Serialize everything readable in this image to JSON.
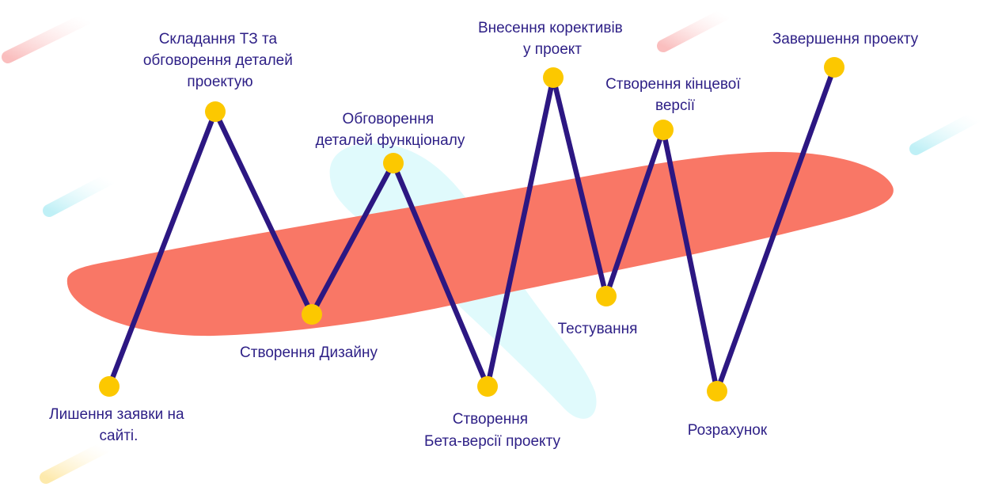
{
  "colors": {
    "path": "#2c1782",
    "node": "#fcc800",
    "blob": "#f97766",
    "blob_light": "#e0fafc",
    "text": "#2d1f86",
    "streak_pink": "#fbd3d3",
    "streak_cyan": "#d6f6fa",
    "streak_yellow": "#fdf0c4"
  },
  "steps": [
    {
      "id": "request",
      "lines": [
        "Лишення заявки на",
        "сайті."
      ]
    },
    {
      "id": "spec",
      "lines": [
        "Складання ТЗ та",
        "обговорення деталей",
        "проектую"
      ]
    },
    {
      "id": "design",
      "lines": [
        "Створення Дизайну"
      ]
    },
    {
      "id": "functional",
      "lines": [
        "Обговорення",
        "деталей функціоналу"
      ]
    },
    {
      "id": "beta",
      "lines": [
        "Створення",
        "Бета-версії проекту"
      ]
    },
    {
      "id": "corrections",
      "lines": [
        "Внесення корективів",
        "у проект"
      ]
    },
    {
      "id": "testing",
      "lines": [
        "Тестування"
      ]
    },
    {
      "id": "final",
      "lines": [
        "Створення кінцевої",
        "версії"
      ]
    },
    {
      "id": "payment",
      "lines": [
        "Розрахунок"
      ]
    },
    {
      "id": "complete",
      "lines": [
        "Завершення проекту"
      ]
    }
  ]
}
